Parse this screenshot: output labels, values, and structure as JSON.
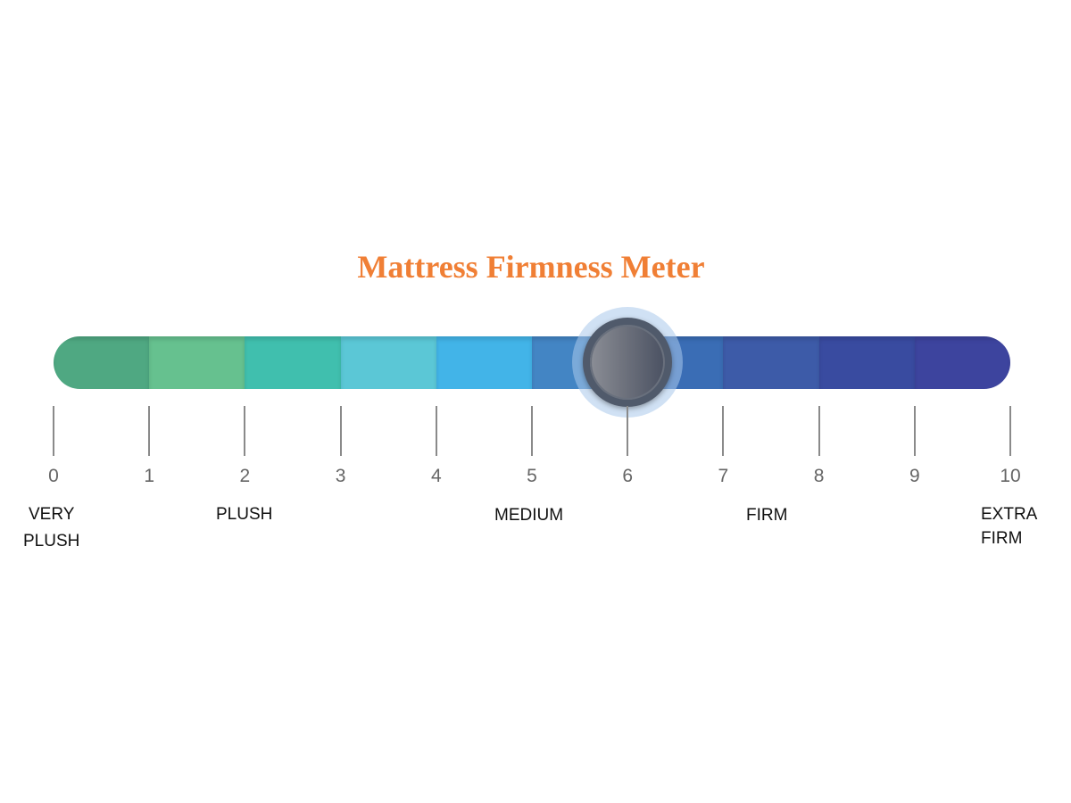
{
  "title": "Mattress Firmness Meter",
  "title_color": "#f07f35",
  "scale": {
    "min": 0,
    "max": 10,
    "ticks": [
      "0",
      "1",
      "2",
      "3",
      "4",
      "5",
      "6",
      "7",
      "8",
      "9",
      "10"
    ],
    "segment_colors": [
      "#4fa882",
      "#66c18f",
      "#40bfae",
      "#5bc7d6",
      "#42b4e8",
      "#4385c4",
      "#3a6db5",
      "#3d5ba8",
      "#394ba0",
      "#3d449e"
    ]
  },
  "indicator": {
    "value": 6,
    "icon": "slider-knob"
  },
  "labels": {
    "very_plush_1": "VERY",
    "very_plush_2": "PLUSH",
    "plush": "PLUSH",
    "medium": "MEDIUM",
    "firm": "FIRM",
    "extra_firm_1": "EXTRA",
    "extra_firm_2": "FIRM"
  }
}
